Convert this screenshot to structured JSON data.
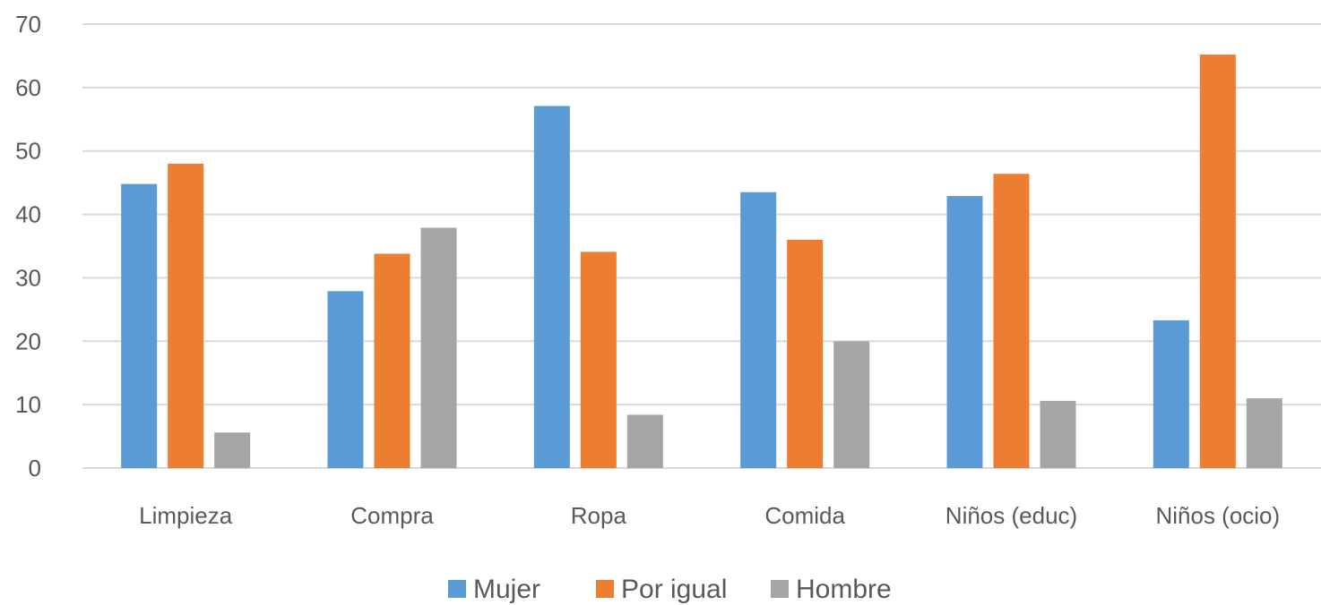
{
  "chart_data": {
    "type": "bar",
    "categories": [
      "Limpieza",
      "Compra",
      "Ropa",
      "Comida",
      "Niños (educ)",
      "Niños (ocio)"
    ],
    "series": [
      {
        "name": "Mujer",
        "color": "#5b9bd5",
        "values": [
          44.8,
          27.9,
          57.1,
          43.5,
          42.9,
          23.3
        ]
      },
      {
        "name": "Por igual",
        "color": "#ed7d31",
        "values": [
          48.0,
          33.8,
          34.1,
          36.0,
          46.4,
          65.2
        ]
      },
      {
        "name": "Hombre",
        "color": "#a5a5a5",
        "values": [
          5.6,
          37.9,
          8.4,
          20.0,
          10.6,
          11.0
        ]
      }
    ],
    "ylim": [
      0,
      70
    ],
    "yticks": [
      0,
      10,
      20,
      30,
      40,
      50,
      60,
      70
    ],
    "grid": true,
    "legend": "bottom",
    "xlabel": "",
    "ylabel": ""
  }
}
